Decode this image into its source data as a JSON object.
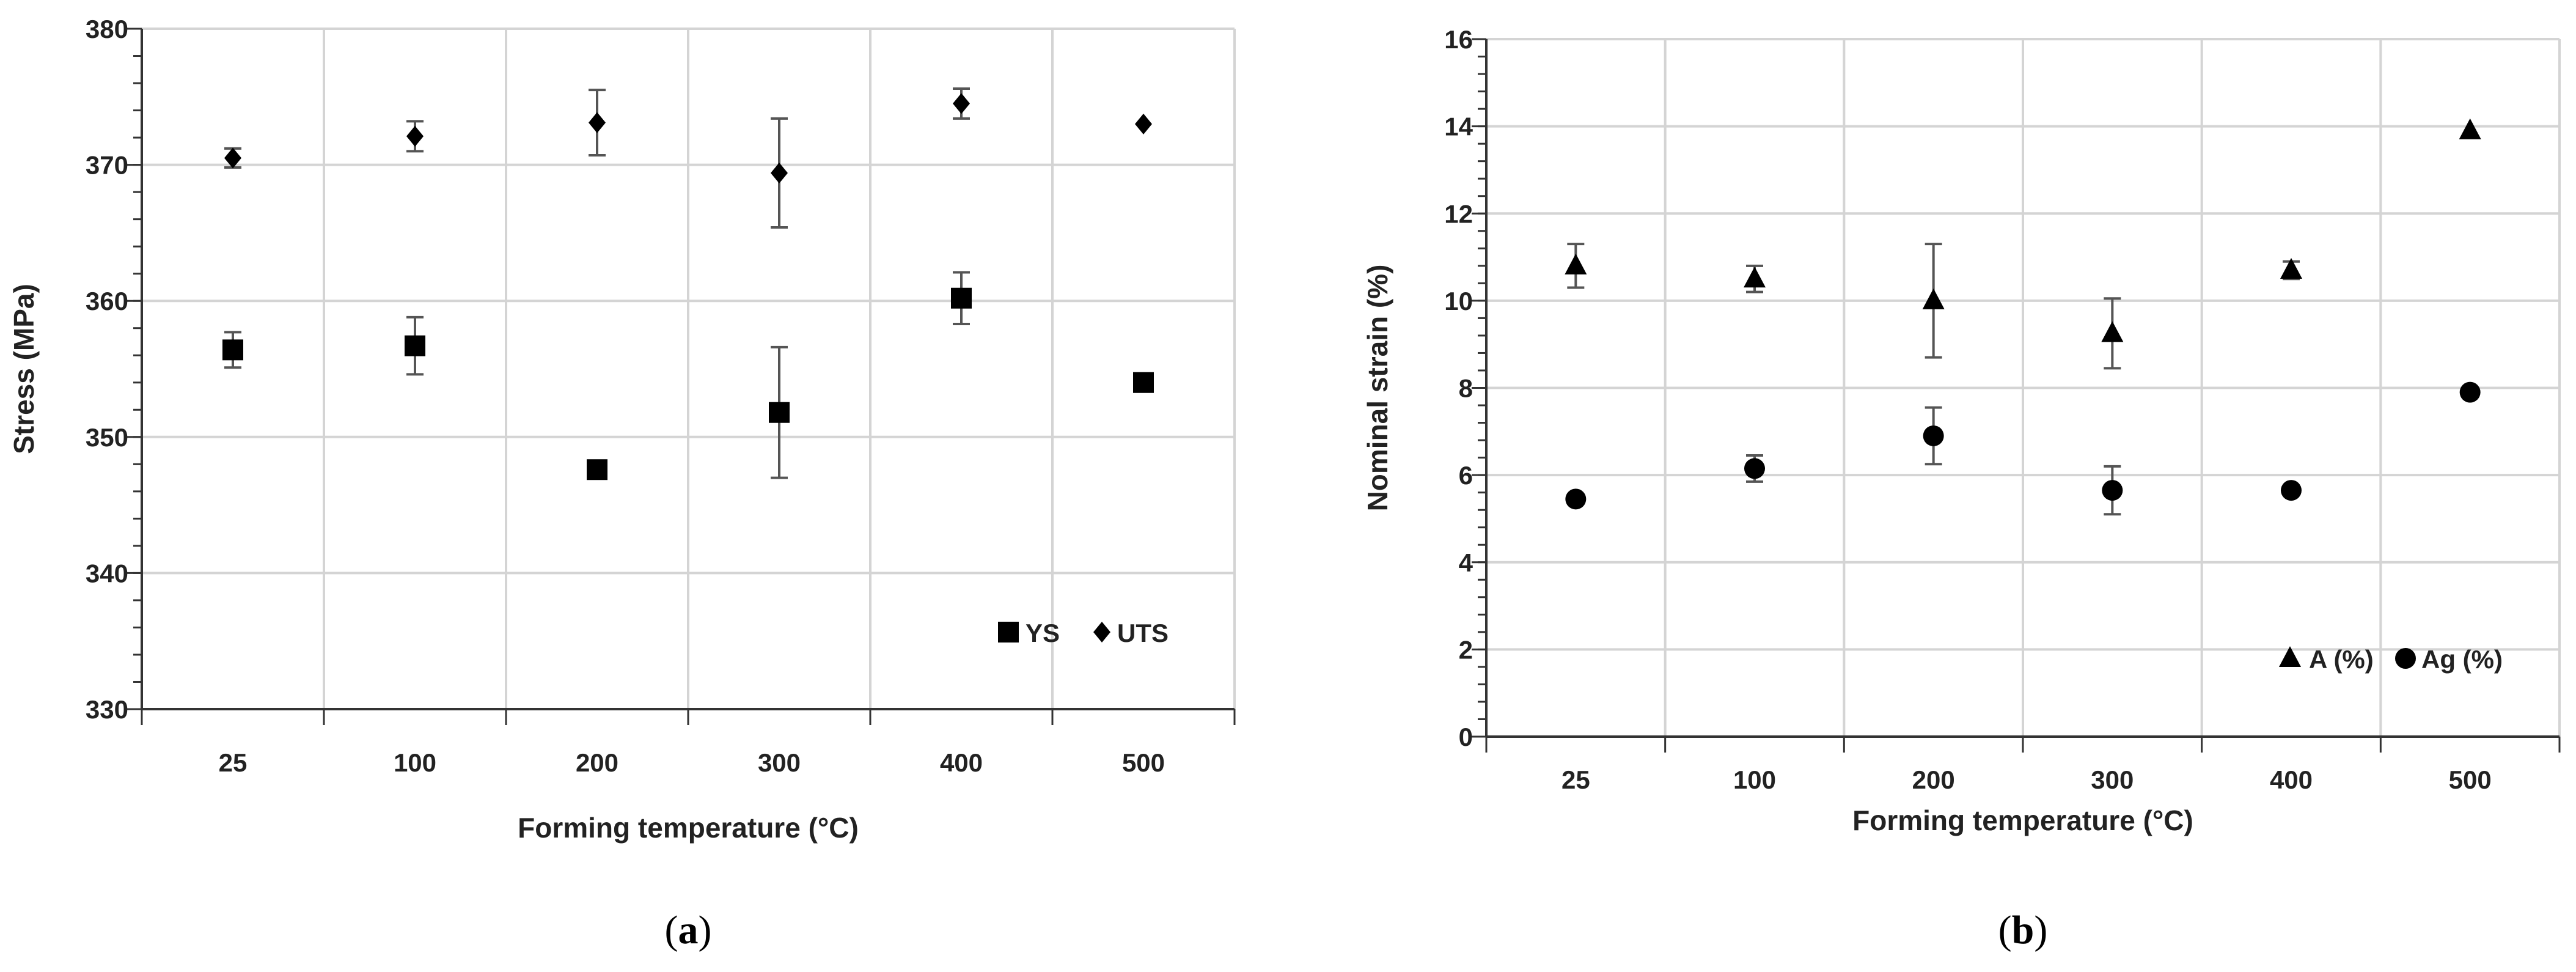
{
  "chart_data": [
    {
      "type": "scatter",
      "panel_caption": "(a)",
      "caption_prefix": "(",
      "caption_letter": "a",
      "caption_suffix": ")",
      "categories": [
        "25",
        "100",
        "200",
        "300",
        "400",
        "500"
      ],
      "xlabel": "Forming temperature (°C)",
      "ylabel": "Stress (MPa)",
      "ylim": [
        330,
        380
      ],
      "yticks": [
        330,
        340,
        350,
        360,
        370,
        380
      ],
      "grid": true,
      "legend_position": "bottom-right",
      "series": [
        {
          "name": "YS",
          "marker": "square",
          "values": [
            356.4,
            356.7,
            347.6,
            351.8,
            360.2,
            354.0
          ],
          "errors": [
            1.3,
            2.1,
            0.0,
            4.8,
            1.9,
            0.0
          ]
        },
        {
          "name": "UTS",
          "marker": "diamond",
          "values": [
            370.5,
            372.1,
            373.1,
            369.4,
            374.5,
            373.0
          ],
          "errors": [
            0.7,
            1.1,
            2.4,
            4.0,
            1.1,
            0.0
          ]
        }
      ]
    },
    {
      "type": "scatter",
      "panel_caption": "(b)",
      "caption_prefix": "(",
      "caption_letter": "b",
      "caption_suffix": ")",
      "categories": [
        "25",
        "100",
        "200",
        "300",
        "400",
        "500"
      ],
      "xlabel": "Forming temperature (°C)",
      "ylabel": "Nominal strain (%)",
      "ylim": [
        0,
        16
      ],
      "yticks": [
        0,
        2,
        4,
        6,
        8,
        10,
        12,
        14,
        16
      ],
      "grid": true,
      "legend_position": "bottom-right",
      "series": [
        {
          "name": "A (%)",
          "marker": "triangle",
          "values": [
            10.8,
            10.5,
            10.0,
            9.25,
            10.7,
            13.9
          ],
          "errors": [
            0.5,
            0.3,
            1.3,
            0.8,
            0.2,
            0.0
          ]
        },
        {
          "name": "Ag (%)",
          "marker": "circle",
          "values": [
            5.45,
            6.15,
            6.9,
            5.65,
            5.65,
            7.9
          ],
          "errors": [
            0.0,
            0.3,
            0.65,
            0.55,
            0.0,
            0.0
          ]
        }
      ]
    }
  ]
}
